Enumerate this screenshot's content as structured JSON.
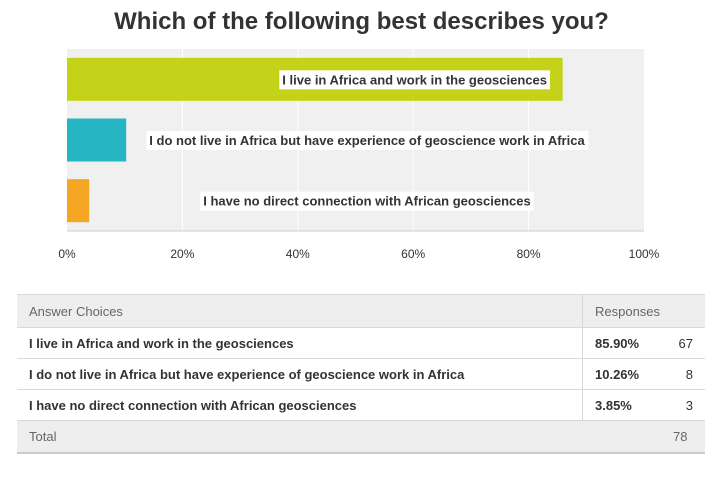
{
  "chart_data": {
    "type": "bar",
    "orientation": "horizontal",
    "title": "Which of the following best describes you?",
    "categories": [
      "I live in Africa and work in the geosciences",
      "I do not live in Africa but have experience of geoscience work in Africa",
      "I have no direct connection with African geosciences"
    ],
    "values": [
      85.9,
      10.26,
      3.85
    ],
    "colors": [
      "#c5d21a",
      "#26b5c2",
      "#f5a623"
    ],
    "xlim": [
      0,
      100
    ],
    "xticks": [
      "0%",
      "20%",
      "40%",
      "60%",
      "80%",
      "100%"
    ],
    "grid": true,
    "legend": "none"
  },
  "table": {
    "header_choice": "Answer Choices",
    "header_responses": "Responses",
    "rows": [
      {
        "choice": "I live in Africa and work in the geosciences",
        "percent": "85.90%",
        "count": "67"
      },
      {
        "choice": "I do not live in Africa but have experience of geoscience work in Africa",
        "percent": "10.26%",
        "count": "8"
      },
      {
        "choice": "I have no direct connection with African geosciences",
        "percent": "3.85%",
        "count": "3"
      }
    ],
    "total_label": "Total",
    "total_count": "78"
  }
}
